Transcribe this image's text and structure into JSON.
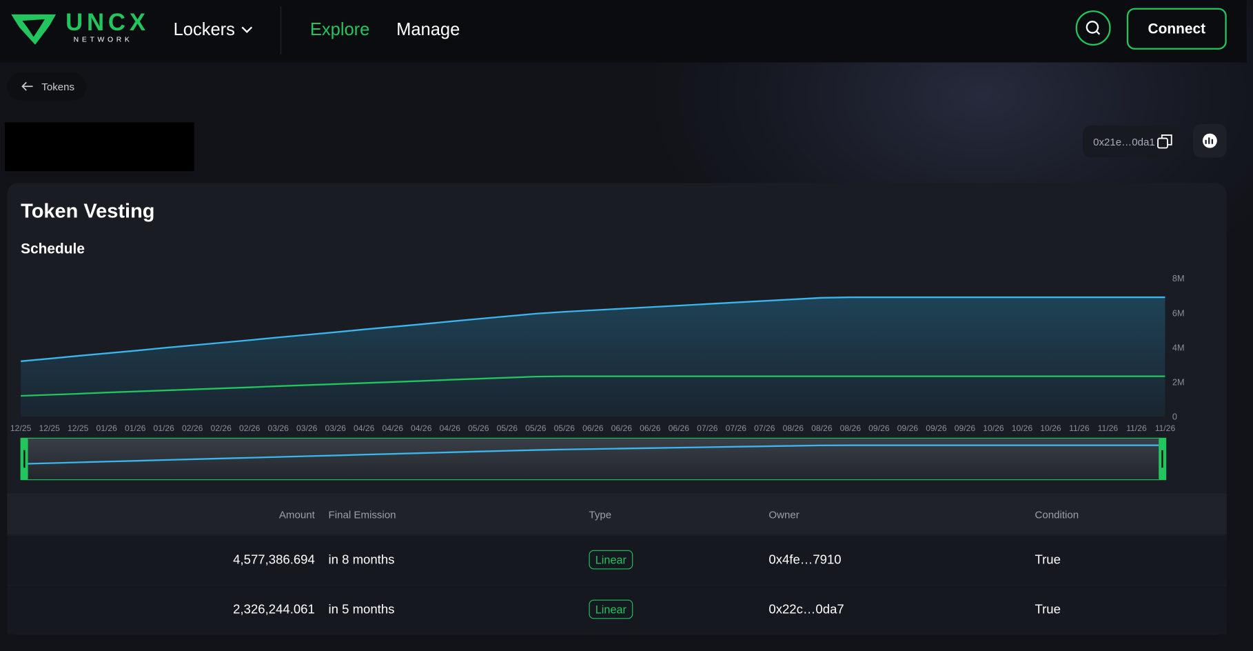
{
  "nav": {
    "logo": "UNCX",
    "logo_sub": "NETWORK",
    "menu": [
      "Lockers",
      "Explore",
      "Manage"
    ],
    "connect": "Connect"
  },
  "back": "Tokens",
  "address": "0x21e…0da1",
  "section_title": "Token Vesting",
  "chart_data": {
    "type": "line",
    "title": "Schedule",
    "categories": [
      "12/25",
      "12/25",
      "12/25",
      "01/26",
      "01/26",
      "01/26",
      "02/26",
      "02/26",
      "02/26",
      "03/26",
      "03/26",
      "03/26",
      "04/26",
      "04/26",
      "04/26",
      "04/26",
      "05/26",
      "05/26",
      "05/26",
      "05/26",
      "06/26",
      "06/26",
      "06/26",
      "06/26",
      "07/26",
      "07/26",
      "07/26",
      "08/26",
      "08/26",
      "08/26",
      "09/26",
      "09/26",
      "09/26",
      "09/26",
      "10/26",
      "10/26",
      "10/26",
      "11/26",
      "11/26",
      "11/26",
      "11/26"
    ],
    "series": [
      {
        "color": "#3bb6ee",
        "values": [
          3200000,
          3350000,
          3510000,
          3660000,
          3810000,
          3970000,
          4120000,
          4270000,
          4420000,
          4580000,
          4730000,
          4880000,
          5040000,
          5190000,
          5340000,
          5500000,
          5650000,
          5800000,
          5950000,
          6060000,
          6150000,
          6240000,
          6330000,
          6420000,
          6510000,
          6600000,
          6690000,
          6780000,
          6870000,
          6900000,
          6900000,
          6900000,
          6900000,
          6900000,
          6900000,
          6900000,
          6900000,
          6900000,
          6900000,
          6900000,
          6900000
        ]
      },
      {
        "color": "#22c55e",
        "values": [
          1200000,
          1260000,
          1320000,
          1390000,
          1450000,
          1510000,
          1570000,
          1630000,
          1690000,
          1760000,
          1820000,
          1880000,
          1940000,
          2000000,
          2060000,
          2130000,
          2190000,
          2250000,
          2310000,
          2330000,
          2330000,
          2330000,
          2330000,
          2330000,
          2330000,
          2330000,
          2330000,
          2330000,
          2330000,
          2330000,
          2330000,
          2330000,
          2330000,
          2330000,
          2330000,
          2330000,
          2330000,
          2330000,
          2330000,
          2330000,
          2330000
        ]
      }
    ],
    "ylim": [
      0,
      8000000
    ],
    "yticks": [
      {
        "value": 0,
        "label": "0"
      },
      {
        "value": 2000000,
        "label": "2M"
      },
      {
        "value": 4000000,
        "label": "4M"
      },
      {
        "value": 6000000,
        "label": "6M"
      },
      {
        "value": 8000000,
        "label": "8M"
      }
    ],
    "area": true,
    "navigator": true
  },
  "table": {
    "columns": [
      "Amount",
      "Final Emission",
      "Type",
      "Owner",
      "Condition"
    ],
    "rows": [
      [
        "4,577,386.694",
        "in 8 months",
        "Linear",
        "0x4fe…7910",
        "True"
      ],
      [
        "2,326,244.061",
        "in 5 months",
        "Linear",
        "0x22c…0da7",
        "True"
      ]
    ]
  }
}
